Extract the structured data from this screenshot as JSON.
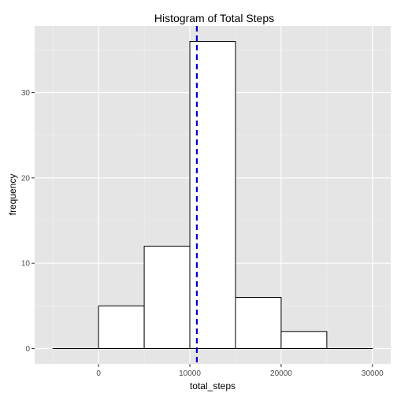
{
  "chart_data": {
    "type": "bar",
    "title": "Histogram of Total Steps",
    "xlabel": "total_steps",
    "ylabel": "frequency",
    "bins": [
      {
        "start": -5000,
        "end": 0,
        "count": 0
      },
      {
        "start": 0,
        "end": 5000,
        "count": 5
      },
      {
        "start": 5000,
        "end": 10000,
        "count": 12
      },
      {
        "start": 10000,
        "end": 15000,
        "count": 36
      },
      {
        "start": 15000,
        "end": 20000,
        "count": 6
      },
      {
        "start": 20000,
        "end": 25000,
        "count": 2
      },
      {
        "start": 25000,
        "end": 30000,
        "count": 0
      }
    ],
    "xlim": [
      -7000,
      32000
    ],
    "ylim": [
      -1.8,
      37.8
    ],
    "x_ticks": [
      0,
      10000,
      20000,
      30000
    ],
    "x_tick_labels": [
      "0",
      "10000",
      "20000",
      "30000"
    ],
    "y_ticks": [
      0,
      10,
      20,
      30
    ],
    "y_tick_labels": [
      "0",
      "10",
      "20",
      "30"
    ],
    "mean_line": {
      "value": 10766,
      "color": "#0000cc",
      "style": "dashed"
    },
    "grid": true,
    "colors": {
      "panel_background": "#e5e5e5",
      "grid_major": "#ffffff",
      "grid_minor": "#f2f2f2",
      "bar_fill": "#ffffff",
      "bar_outline": "#000000"
    }
  }
}
